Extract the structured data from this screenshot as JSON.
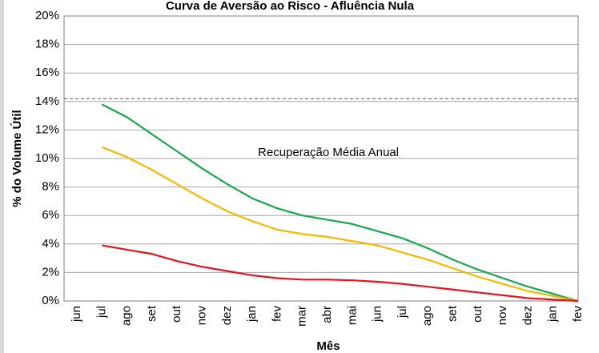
{
  "chart_data": {
    "type": "line",
    "title": "Curva de Aversão ao Risco - Afluência Nula",
    "xlabel": "Mês",
    "ylabel": "% do Volume Útil",
    "categories": [
      "jun",
      "jul",
      "ago",
      "set",
      "out",
      "nov",
      "dez",
      "jan",
      "fev",
      "mar",
      "abr",
      "mai",
      "jun",
      "jul",
      "ago",
      "set",
      "out",
      "nov",
      "dez",
      "jan",
      "fev"
    ],
    "series": [
      {
        "color": "#1aa64a",
        "values": [
          null,
          13.8,
          12.9,
          11.7,
          10.5,
          9.3,
          8.2,
          7.2,
          6.5,
          6.0,
          5.7,
          5.4,
          4.9,
          4.4,
          3.7,
          2.9,
          2.2,
          1.6,
          1.0,
          0.5,
          0.0
        ]
      },
      {
        "color": "#f5b800",
        "values": [
          null,
          10.8,
          10.1,
          9.2,
          8.2,
          7.2,
          6.3,
          5.6,
          5.0,
          4.7,
          4.5,
          4.2,
          3.9,
          3.4,
          2.9,
          2.3,
          1.7,
          1.2,
          0.7,
          0.35,
          0.0
        ]
      },
      {
        "color": "#e0141e",
        "values": [
          null,
          3.9,
          3.6,
          3.3,
          2.8,
          2.4,
          2.1,
          1.8,
          1.6,
          1.5,
          1.5,
          1.45,
          1.35,
          1.2,
          1.0,
          0.8,
          0.6,
          0.4,
          0.2,
          0.1,
          0.0
        ]
      }
    ],
    "reference_line": {
      "value": 14.2,
      "label": "Recuperação Média Anual"
    },
    "ylim": [
      0,
      20
    ],
    "yticks": [
      {
        "value": 0,
        "label": "0%"
      },
      {
        "value": 2,
        "label": "2%"
      },
      {
        "value": 4,
        "label": "4%"
      },
      {
        "value": 6,
        "label": "6%"
      },
      {
        "value": 8,
        "label": "8%"
      },
      {
        "value": 10,
        "label": "10%"
      },
      {
        "value": 12,
        "label": "12%"
      },
      {
        "value": 14,
        "label": "14%"
      },
      {
        "value": 16,
        "label": "16%"
      },
      {
        "value": 18,
        "label": "18%"
      },
      {
        "value": 20,
        "label": "20%"
      }
    ],
    "grid": true
  }
}
